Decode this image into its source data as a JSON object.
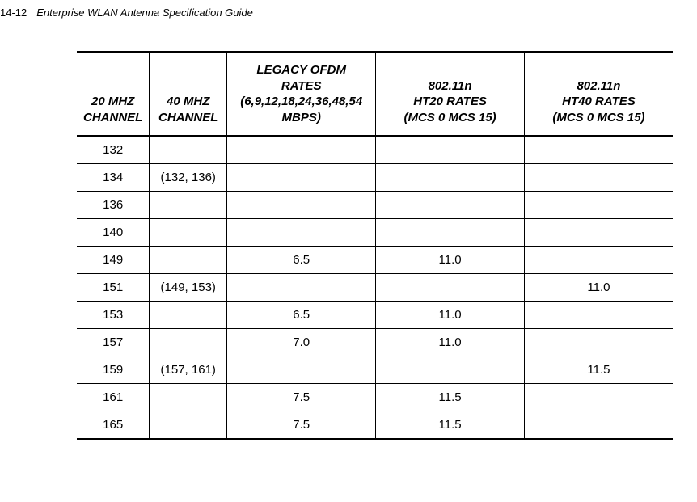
{
  "page_number": "14-12",
  "doc_title": "Enterprise WLAN Antenna Specification Guide",
  "table": {
    "columns": [
      {
        "line1": "20 MHZ",
        "line2": "CHANNEL"
      },
      {
        "line1": "40 MHZ",
        "line2": "CHANNEL"
      },
      {
        "line1": "LEGACY OFDM",
        "line2": "RATES",
        "line3": "(6,9,12,18,24,36,48,54",
        "line4": "MBPS)"
      },
      {
        "line1": "802.11n",
        "line2": "HT20 RATES",
        "line3": "(MCS 0   MCS 15)"
      },
      {
        "line1": "802.11n",
        "line2": "HT40 RATES",
        "line3": "(MCS 0   MCS 15)"
      }
    ],
    "rows": [
      {
        "c0": "132",
        "c1": "",
        "c2": "",
        "c3": "",
        "c4": ""
      },
      {
        "c0": "134",
        "c1": "(132, 136)",
        "c2": "",
        "c3": "",
        "c4": ""
      },
      {
        "c0": "136",
        "c1": "",
        "c2": "",
        "c3": "",
        "c4": ""
      },
      {
        "c0": "140",
        "c1": "",
        "c2": "",
        "c3": "",
        "c4": ""
      },
      {
        "c0": "149",
        "c1": "",
        "c2": "6.5",
        "c3": "11.0",
        "c4": ""
      },
      {
        "c0": "151",
        "c1": "(149, 153)",
        "c2": "",
        "c3": "",
        "c4": "11.0"
      },
      {
        "c0": "153",
        "c1": "",
        "c2": "6.5",
        "c3": "11.0",
        "c4": ""
      },
      {
        "c0": "157",
        "c1": "",
        "c2": "7.0",
        "c3": "11.0",
        "c4": ""
      },
      {
        "c0": "159",
        "c1": "(157, 161)",
        "c2": "",
        "c3": "",
        "c4": "11.5"
      },
      {
        "c0": "161",
        "c1": "",
        "c2": "7.5",
        "c3": "11.5",
        "c4": ""
      },
      {
        "c0": "165",
        "c1": "",
        "c2": "7.5",
        "c3": "11.5",
        "c4": ""
      }
    ]
  }
}
